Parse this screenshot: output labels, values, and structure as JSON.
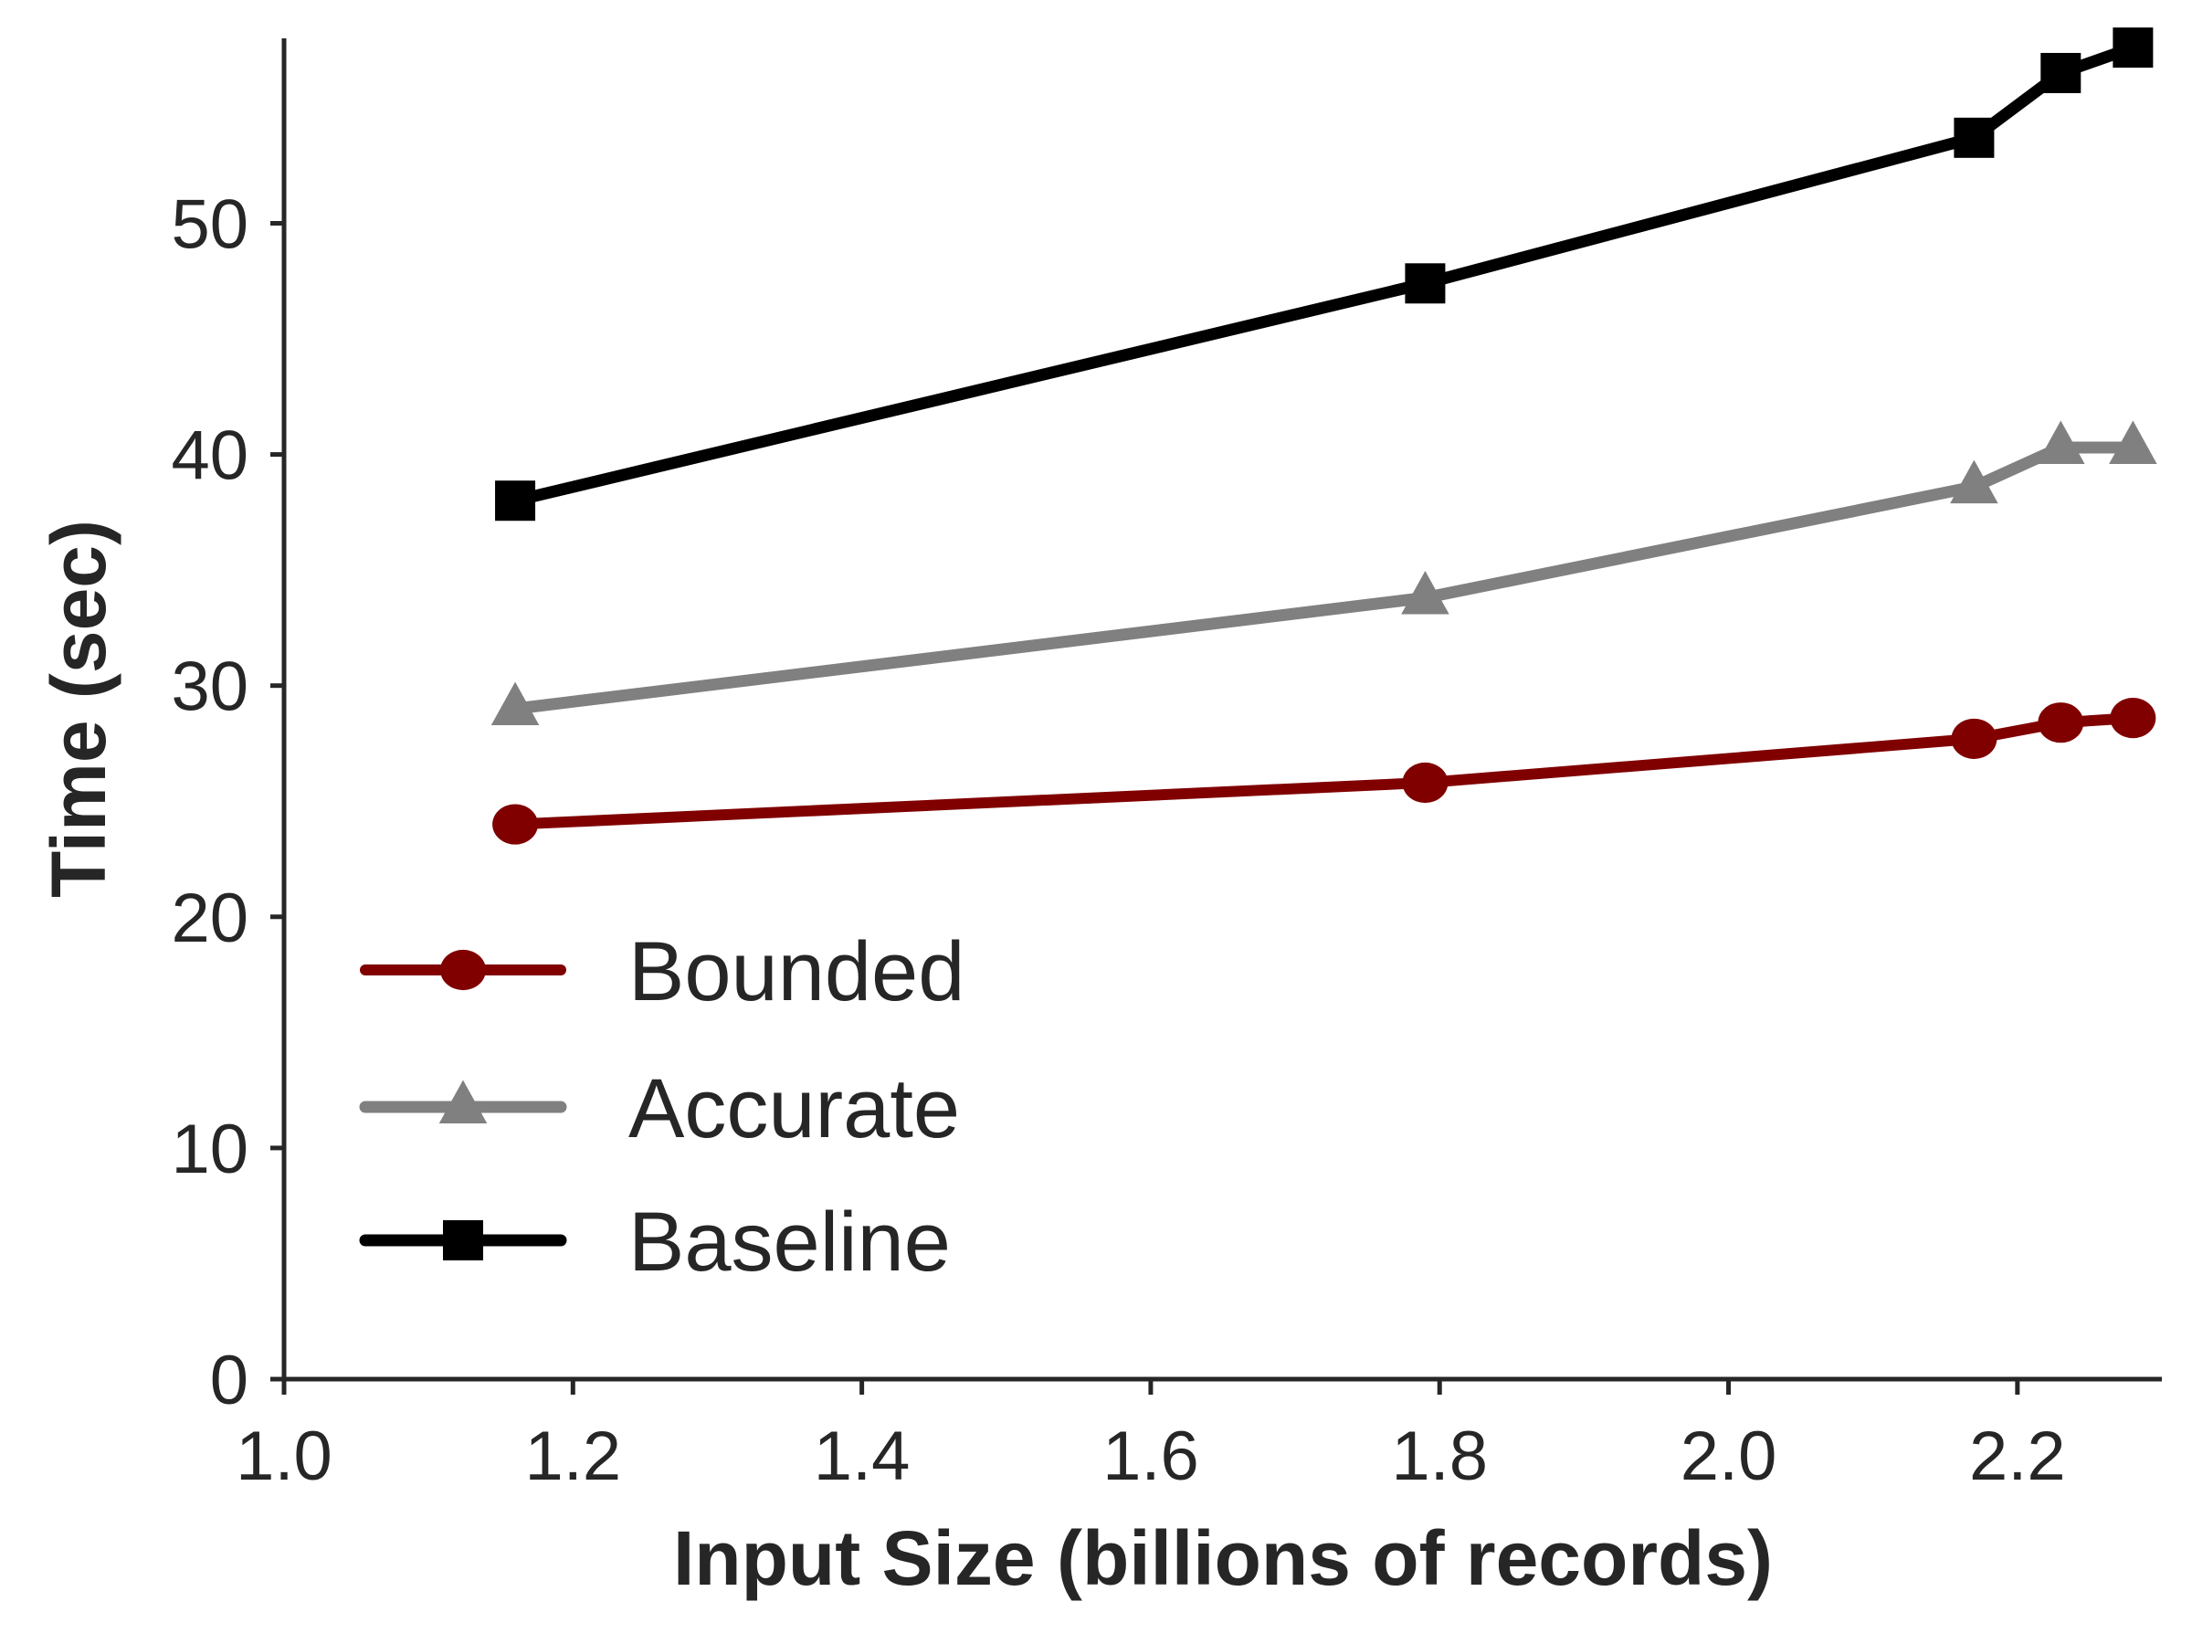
{
  "chart_data": {
    "type": "line",
    "title": "",
    "xlabel": "Input Size (billions of records)",
    "ylabel": "Time (sec)",
    "xlim": [
      1.0,
      2.3
    ],
    "ylim": [
      0,
      58
    ],
    "xticks": [
      "1.0",
      "1.2",
      "1.4",
      "1.6",
      "1.8",
      "2.0",
      "2.2"
    ],
    "yticks": [
      "0",
      "10",
      "20",
      "30",
      "40",
      "50"
    ],
    "grid": false,
    "legend_position": "lower-left",
    "x": [
      1.16,
      1.79,
      2.17,
      2.23,
      2.28
    ],
    "series": [
      {
        "name": "Bounded",
        "values": [
          24.0,
          25.8,
          27.7,
          28.4,
          28.6
        ],
        "color": "#800000",
        "marker": "circle"
      },
      {
        "name": "Accurate",
        "values": [
          29.0,
          33.8,
          38.6,
          40.3,
          40.3
        ],
        "color": "#808080",
        "marker": "triangle"
      },
      {
        "name": "Baseline",
        "values": [
          38.0,
          47.4,
          53.7,
          56.5,
          57.6
        ],
        "color": "#000000",
        "marker": "square"
      }
    ]
  }
}
